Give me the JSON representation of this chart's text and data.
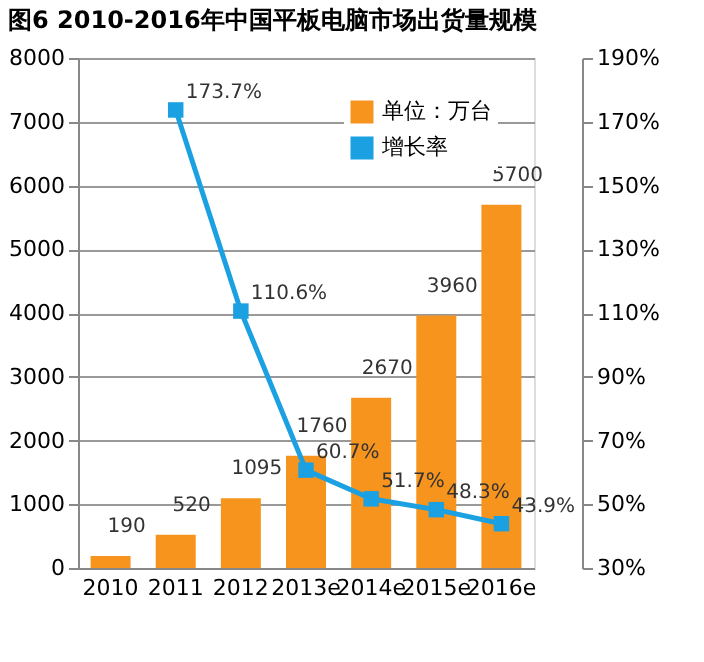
{
  "chart_data": {
    "type": "bar",
    "title": "图6  2010-2016年中国平板电脑市场出货量规模",
    "categories": [
      "2010",
      "2011",
      "2012",
      "2013e",
      "2014e",
      "2015e",
      "2016e"
    ],
    "series": [
      {
        "name": "单位：万台",
        "type": "bar",
        "color": "#f7941d",
        "values": [
          190,
          520,
          1095,
          1760,
          2670,
          3960,
          5700
        ]
      },
      {
        "name": "增长率",
        "type": "line",
        "axis": "y2",
        "color": "#1ba1e2",
        "marker": "square",
        "values": [
          null,
          173.7,
          110.6,
          60.7,
          51.7,
          48.3,
          43.9
        ],
        "value_labels": [
          null,
          "173.7%",
          "110.6%",
          "60.7%",
          "51.7%",
          "48.3%",
          "43.9%"
        ]
      }
    ],
    "data_labels": true,
    "ylim": [
      0,
      8000
    ],
    "yticks": [
      0,
      1000,
      2000,
      3000,
      4000,
      5000,
      6000,
      7000,
      8000
    ],
    "y2lim": [
      30,
      190
    ],
    "y2ticks": [
      {
        "value": 30,
        "label": "30%"
      },
      {
        "value": 50,
        "label": "50%"
      },
      {
        "value": 70,
        "label": "70%"
      },
      {
        "value": 90,
        "label": "90%"
      },
      {
        "value": 110,
        "label": "110%"
      },
      {
        "value": 130,
        "label": "130%"
      },
      {
        "value": 150,
        "label": "150%"
      },
      {
        "value": 170,
        "label": "170%"
      },
      {
        "value": 190,
        "label": "190%"
      }
    ],
    "grid": "y",
    "legend": "top right"
  }
}
